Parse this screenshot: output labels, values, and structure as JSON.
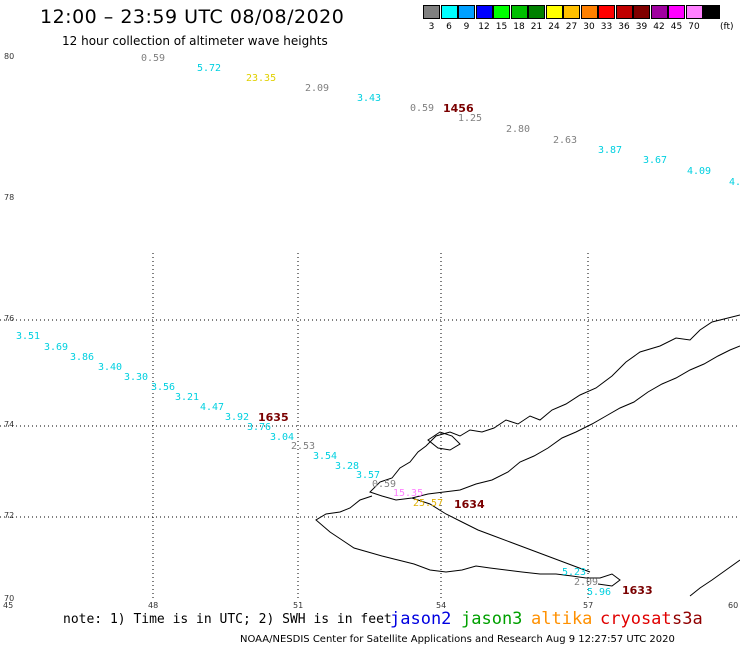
{
  "header": {
    "title": "12:00 – 23:59 UTC 08/08/2020",
    "subtitle": "12 hour collection of altimeter wave heights"
  },
  "color_scale": {
    "unit": "(ft)",
    "bins": [
      {
        "label": "3",
        "color": "#808080"
      },
      {
        "label": "6",
        "color": "#00ffff"
      },
      {
        "label": "9",
        "color": "#00a0ff"
      },
      {
        "label": "12",
        "color": "#0000ff"
      },
      {
        "label": "15",
        "color": "#00ff00"
      },
      {
        "label": "18",
        "color": "#00c000"
      },
      {
        "label": "21",
        "color": "#008000"
      },
      {
        "label": "24",
        "color": "#ffff00"
      },
      {
        "label": "27",
        "color": "#ffc000"
      },
      {
        "label": "30",
        "color": "#ff8000"
      },
      {
        "label": "33",
        "color": "#ff0000"
      },
      {
        "label": "36",
        "color": "#c00000"
      },
      {
        "label": "39",
        "color": "#800000"
      },
      {
        "label": "42",
        "color": "#a000a0"
      },
      {
        "label": "45",
        "color": "#ff00ff"
      },
      {
        "label": "70",
        "color": "#ff80ff"
      },
      {
        "label": "",
        "color": "#000000"
      }
    ]
  },
  "axes": {
    "lat_labels": [
      "80",
      "78",
      "76",
      "74",
      "72",
      "70"
    ],
    "lon_labels": [
      "45",
      "48",
      "51",
      "54",
      "57",
      "60"
    ]
  },
  "observations": [
    {
      "text": "0.59",
      "color": "#808080"
    },
    {
      "text": "5.72",
      "color": "#00d0e0"
    },
    {
      "text": "23.35",
      "color": "#e0d000"
    },
    {
      "text": "2.09",
      "color": "#808080"
    },
    {
      "text": "3.43",
      "color": "#00d0e0"
    },
    {
      "text": "0.59",
      "color": "#808080"
    },
    {
      "text": "1.25",
      "color": "#808080"
    },
    {
      "text": "2.80",
      "color": "#808080"
    },
    {
      "text": "2.63",
      "color": "#808080"
    },
    {
      "text": "3.87",
      "color": "#00d0e0"
    },
    {
      "text": "3.67",
      "color": "#00d0e0"
    },
    {
      "text": "4.09",
      "color": "#00d0e0"
    },
    {
      "text": "4.",
      "color": "#00d0e0"
    },
    {
      "text": "3.51",
      "color": "#00d0e0"
    },
    {
      "text": "3.69",
      "color": "#00d0e0"
    },
    {
      "text": "3.86",
      "color": "#00d0e0"
    },
    {
      "text": "3.40",
      "color": "#00d0e0"
    },
    {
      "text": "3.30",
      "color": "#00d0e0"
    },
    {
      "text": "3.56",
      "color": "#00d0e0"
    },
    {
      "text": "3.21",
      "color": "#00d0e0"
    },
    {
      "text": "4.47",
      "color": "#00d0e0"
    },
    {
      "text": "3.92",
      "color": "#00d0e0"
    },
    {
      "text": "3.76",
      "color": "#00d0e0"
    },
    {
      "text": "3.04",
      "color": "#00d0e0"
    },
    {
      "text": "2.53",
      "color": "#808080"
    },
    {
      "text": "3.54",
      "color": "#00d0e0"
    },
    {
      "text": "3.28",
      "color": "#00d0e0"
    },
    {
      "text": "3.57",
      "color": "#00d0e0"
    },
    {
      "text": "0.59",
      "color": "#808080"
    },
    {
      "text": "15.35",
      "color": "#ff80ff"
    },
    {
      "text": "25.57",
      "color": "#e0b000"
    },
    {
      "text": "5.23",
      "color": "#00d0e0"
    },
    {
      "text": "2.09",
      "color": "#808080"
    },
    {
      "text": "5.96",
      "color": "#00d0e0"
    }
  ],
  "pass_times": [
    "1456",
    "1635",
    "1634",
    "1633"
  ],
  "footer": {
    "note": "note: 1) Time is in UTC; 2) SWH is in feet",
    "satellites": [
      {
        "name": "jason2",
        "color": "#0000e0"
      },
      {
        "name": "jason3",
        "color": "#00a000"
      },
      {
        "name": "altika",
        "color": "#ff9000"
      },
      {
        "name": "cryosat",
        "color": "#e00000"
      },
      {
        "name": "s3a",
        "color": "#900000"
      }
    ],
    "credit": "NOAA/NESDIS Center for Satellite Applications and Research    Aug  9 12:27:57 UTC 2020"
  }
}
